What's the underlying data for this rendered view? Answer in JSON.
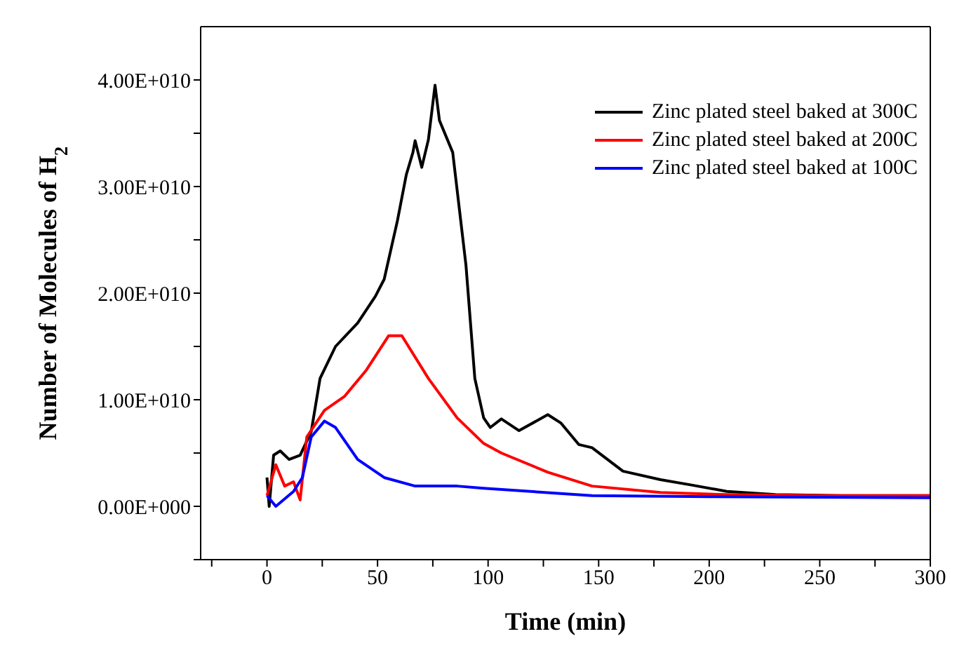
{
  "chart_data": {
    "type": "line",
    "xlabel": "Time (min)",
    "ylabel": "Number of Molecules of H$_{2}$",
    "xlim": [
      -30,
      300
    ],
    "xticks": [
      {
        "value": -25,
        "label": null
      },
      0,
      {
        "value": 25,
        "label": null
      },
      50,
      {
        "value": 75,
        "label": null
      },
      100,
      {
        "value": 125,
        "label": null
      },
      150,
      {
        "value": 175,
        "label": null
      },
      200,
      {
        "value": 225,
        "label": null
      },
      250,
      {
        "value": 275,
        "label": null
      },
      300
    ],
    "ylim": [
      -5000000000,
      45000000000
    ],
    "yticks": [
      {
        "value": -5000000000,
        "label": null
      },
      {
        "value": 0,
        "label": "0.00E+000"
      },
      {
        "value": 5000000000,
        "label": null
      },
      {
        "value": 10000000000,
        "label": "1.00E+010"
      },
      {
        "value": 15000000000,
        "label": null
      },
      {
        "value": 20000000000,
        "label": "2.00E+010"
      },
      {
        "value": 25000000000,
        "label": null
      },
      {
        "value": 30000000000,
        "label": "3.00E+010"
      },
      {
        "value": 35000000000,
        "label": null
      },
      {
        "value": 40000000000,
        "label": "4.00E+010"
      }
    ],
    "legend": "top right",
    "marker": "none",
    "line_style": "solid",
    "series": [
      {
        "name": "Zinc plated steel baked at 300C",
        "color": "#000000",
        "x": [
          0,
          1,
          3,
          6,
          10,
          15,
          20,
          24,
          31,
          41,
          49,
          53,
          59,
          63,
          66,
          67,
          70,
          73,
          76,
          78,
          84,
          90,
          94,
          98,
          101,
          106,
          114,
          127,
          133,
          141,
          147,
          161,
          178,
          192,
          208,
          230,
          260,
          300
        ],
        "values": [
          2700000000,
          0,
          4800000000,
          5200000000,
          4400000000,
          4800000000,
          7000000000,
          12000000000,
          15000000000,
          17200000000,
          19700000000,
          21300000000,
          26800000000,
          31100000000,
          33200000000,
          34300000000,
          31800000000,
          34400000000,
          39500000000,
          36200000000,
          33200000000,
          22600000000,
          12000000000,
          8300000000,
          7400000000,
          8200000000,
          7100000000,
          8600000000,
          7800000000,
          5800000000,
          5500000000,
          3300000000,
          2500000000,
          2000000000,
          1400000000,
          1100000000,
          1000000000,
          1000000000
        ]
      },
      {
        "name": "Zinc plated steel baked at 200C",
        "color": "#ff0000",
        "x": [
          0,
          4,
          8,
          12,
          15,
          18,
          26,
          35,
          45,
          55,
          61,
          73,
          86,
          98,
          106,
          127,
          147,
          178,
          208,
          250,
          300
        ],
        "values": [
          1000000000,
          3900000000,
          1900000000,
          2300000000,
          600000000,
          6500000000,
          9000000000,
          10300000000,
          12800000000,
          16000000000,
          16000000000,
          12000000000,
          8300000000,
          5900000000,
          5000000000,
          3200000000,
          1900000000,
          1300000000,
          1100000000,
          1000000000,
          1000000000
        ]
      },
      {
        "name": "Zinc plated steel baked at 100C",
        "color": "#0000ff",
        "x": [
          0,
          4,
          12,
          16,
          20,
          26,
          31,
          41,
          53,
          67,
          86,
          98,
          147,
          200,
          300
        ],
        "values": [
          1000000000,
          0,
          1400000000,
          2700000000,
          6500000000,
          8000000000,
          7400000000,
          4400000000,
          2700000000,
          1900000000,
          1900000000,
          1700000000,
          1000000000,
          900000000,
          800000000
        ]
      }
    ]
  }
}
